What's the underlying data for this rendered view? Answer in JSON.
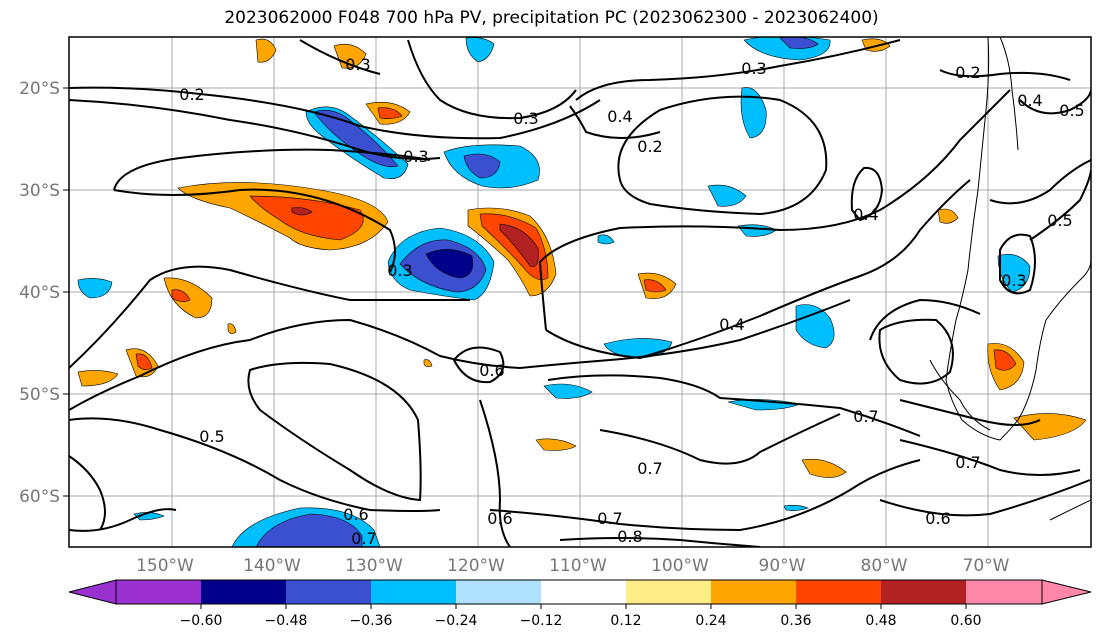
{
  "title": "2023062000 F048 700 hPa PV, precipitation PC (2023062300 - 2023062400)",
  "map": {
    "lat_labels": [
      "20°S",
      "30°S",
      "40°S",
      "50°S",
      "60°S"
    ],
    "lon_labels": [
      "150°W",
      "140°W",
      "130°W",
      "120°W",
      "110°W",
      "100°W",
      "90°W",
      "80°W",
      "70°W"
    ],
    "contour_labels": [
      "0.2",
      "0.3",
      "0.3",
      "0.3",
      "0.4",
      "0.2",
      "0.3",
      "0.2",
      "0.4",
      "0.5",
      "0.4",
      "0.5",
      "0.4",
      "0.3",
      "0.6",
      "0.5",
      "0.7",
      "0.7",
      "0.7",
      "0.6",
      "0.6",
      "0.7",
      "0.8",
      "0.6",
      "0.7",
      "0.3"
    ]
  },
  "colorbar": {
    "ticks": [
      "−0.60",
      "−0.48",
      "−0.36",
      "−0.24",
      "−0.12",
      "0.12",
      "0.24",
      "0.36",
      "0.48",
      "0.60"
    ],
    "colors": [
      "#9b30d0",
      "#00008b",
      "#3a50d0",
      "#00bfff",
      "#b0e2ff",
      "#ffffff",
      "#ffee88",
      "#ffa500",
      "#ff4500",
      "#b22222",
      "#ff88aa"
    ]
  }
}
